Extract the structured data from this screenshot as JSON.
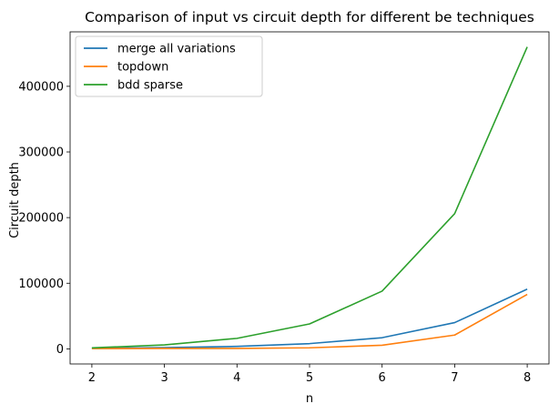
{
  "chart_data": {
    "type": "line",
    "title": "Comparison of input vs circuit depth for different be techniques",
    "xlabel": "n",
    "ylabel": "Circuit depth",
    "x": [
      2,
      3,
      4,
      5,
      6,
      7,
      8
    ],
    "xlim": [
      1.7,
      8.3
    ],
    "ylim": [
      -23000,
      483000
    ],
    "xticks": [
      2,
      3,
      4,
      5,
      6,
      7,
      8
    ],
    "yticks": [
      0,
      100000,
      200000,
      300000,
      400000
    ],
    "grid": false,
    "legend_position": "upper-left",
    "series": [
      {
        "name": "merge all variations",
        "color": "#1f77b4",
        "values": [
          1000,
          1800,
          3800,
          8000,
          17000,
          40000,
          91000
        ]
      },
      {
        "name": "topdown",
        "color": "#ff7f0e",
        "values": [
          500,
          600,
          700,
          1600,
          5500,
          21000,
          83000
        ]
      },
      {
        "name": "bdd sparse",
        "color": "#2ca02c",
        "values": [
          1500,
          6000,
          16000,
          38000,
          88000,
          206000,
          460000
        ]
      }
    ]
  }
}
